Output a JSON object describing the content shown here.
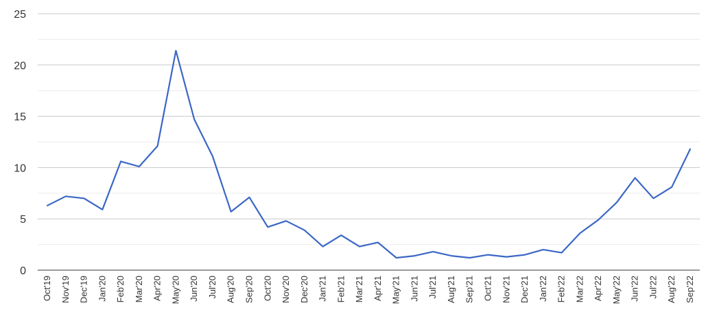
{
  "chart_data": {
    "type": "line",
    "title": "",
    "xlabel": "",
    "ylabel": "",
    "ylim": [
      0,
      25
    ],
    "yticks": [
      "0",
      "5",
      "10",
      "15",
      "20",
      "25"
    ],
    "grid": true,
    "legend": "none",
    "categories": [
      "Oct'19",
      "Nov'19",
      "Dec'19",
      "Jan'20",
      "Feb'20",
      "Mar'20",
      "Apr'20",
      "May'20",
      "Jun'20",
      "Jul'20",
      "Aug'20",
      "Sep'20",
      "Oct'20",
      "Nov'20",
      "Dec'20",
      "Jan'21",
      "Feb'21",
      "Mar'21",
      "Apr'21",
      "May'21",
      "Jun'21",
      "Jul'21",
      "Aug'21",
      "Sep'21",
      "Oct'21",
      "Nov'21",
      "Dec'21",
      "Jan'22",
      "Feb'22",
      "Mar'22",
      "Apr'22",
      "May'22",
      "Jun'22",
      "Jul'22",
      "Aug'22",
      "Sep'22"
    ],
    "series": [
      {
        "color": "#3a66c6",
        "values": [
          6.3,
          7.2,
          7.0,
          5.9,
          10.6,
          10.1,
          12.1,
          21.4,
          14.7,
          11.1,
          5.7,
          7.1,
          4.2,
          4.8,
          3.9,
          2.3,
          3.4,
          2.3,
          2.7,
          1.2,
          1.4,
          1.8,
          1.4,
          1.2,
          1.5,
          1.3,
          1.5,
          2.0,
          1.7,
          3.6,
          4.9,
          6.6,
          9.0,
          7.0,
          8.1,
          11.8
        ]
      }
    ]
  },
  "colors": {
    "line": "#3a66c6",
    "grid_major": "#c8c8c8",
    "grid_minor": "#ebebeb",
    "axis": "#333333",
    "text": "#333333"
  }
}
